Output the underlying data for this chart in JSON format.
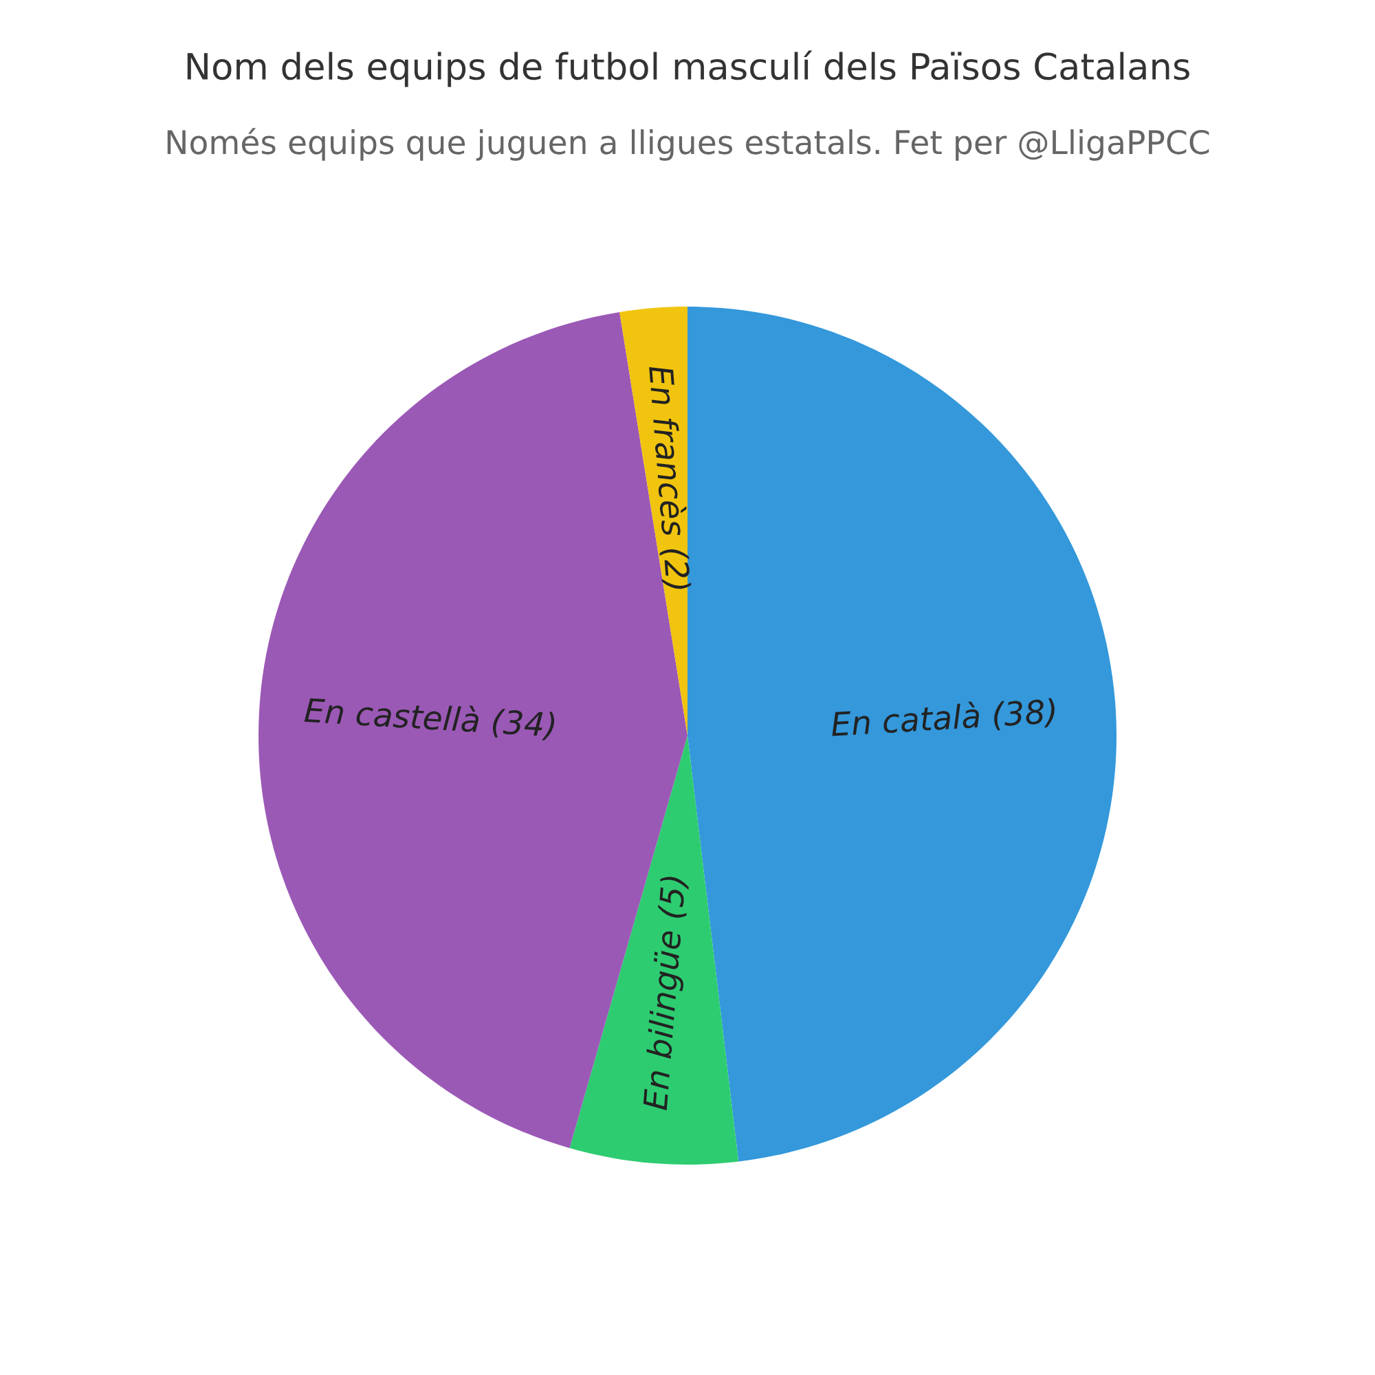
{
  "chart_data": {
    "type": "pie",
    "title": "Nom dels equips de futbol masculí dels Països Catalans",
    "subtitle": "Només equips que juguen a lligues estatals. Fet per @LligaPPCC",
    "categories": [
      "En català (38)",
      "En bilingüe (5)",
      "En castellà (34)",
      "En francès (2)"
    ],
    "values": [
      38,
      5,
      34,
      2
    ],
    "colors": [
      "#3498db",
      "#2ecc71",
      "#9b59b6",
      "#f1c40f"
    ]
  }
}
